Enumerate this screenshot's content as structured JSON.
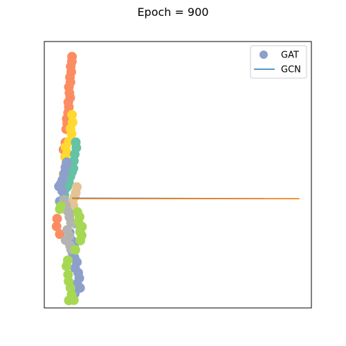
{
  "chart_data": {
    "type": "scatter",
    "title": "Epoch = 900",
    "xlabel": "",
    "ylabel": "",
    "xlim": [
      0,
      100
    ],
    "ylim": [
      0,
      100
    ],
    "axis_ticks_visible": false,
    "grid": false,
    "legend": {
      "placement": "top-right",
      "entries": [
        {
          "label": "GAT",
          "marker": "circle",
          "color": "#8da0cb"
        },
        {
          "label": "GCN",
          "marker": "line",
          "color": "#1f77b4"
        }
      ]
    },
    "palette": [
      "#fc8d62",
      "#ffd92f",
      "#66c2a5",
      "#8da0cb",
      "#e5c494",
      "#b3b3b3",
      "#a6d854"
    ],
    "series": [
      {
        "name": "GAT",
        "type": "scatter",
        "clusters": [
          {
            "color": "#fc8d62",
            "points": [
              [
                10.4,
                94.3
              ],
              [
                10.3,
                92.5
              ],
              [
                9.9,
                90.6
              ],
              [
                10.1,
                88.6
              ],
              [
                9.6,
                86.6
              ],
              [
                9.8,
                84.7
              ],
              [
                9.2,
                82.9
              ],
              [
                9.4,
                80.7
              ],
              [
                9.7,
                78.9
              ],
              [
                9.0,
                77.2
              ],
              [
                9.2,
                75.4
              ],
              [
                8.9,
                73.3
              ],
              [
                8.4,
                71.0
              ],
              [
                8.6,
                69.3
              ],
              [
                8.2,
                67.1
              ],
              [
                7.9,
                62.1
              ],
              [
                7.2,
                59.4
              ],
              [
                4.8,
                33.5
              ],
              [
                4.6,
                30.6
              ],
              [
                5.8,
                27.7
              ]
            ]
          },
          {
            "color": "#ffd92f",
            "points": [
              [
                10.4,
                72.5
              ],
              [
                10.6,
                69.7
              ],
              [
                9.8,
                67.3
              ],
              [
                10.2,
                65.4
              ],
              [
                9.2,
                62.5
              ],
              [
                8.0,
                60.4
              ],
              [
                8.6,
                58.2
              ],
              [
                7.8,
                56.6
              ],
              [
                8.2,
                54.1
              ],
              [
                7.2,
                50.1
              ],
              [
                7.9,
                47.4
              ],
              [
                10.5,
                36.9
              ],
              [
                10.0,
                36.4
              ]
            ]
          },
          {
            "color": "#66c2a5",
            "points": [
              [
                11.8,
                62.2
              ],
              [
                12.0,
                60.1
              ],
              [
                11.4,
                57.7
              ],
              [
                11.1,
                55.2
              ],
              [
                10.9,
                52.4
              ],
              [
                10.4,
                51.1
              ],
              [
                9.8,
                49.4
              ],
              [
                9.2,
                47.3
              ],
              [
                8.6,
                45.5
              ],
              [
                7.9,
                44.7
              ],
              [
                7.5,
                42.4
              ],
              [
                7.0,
                44.4
              ]
            ]
          },
          {
            "color": "#8da0cb",
            "points": [
              [
                8.4,
                54.7
              ],
              [
                7.9,
                52.7
              ],
              [
                7.4,
                50.4
              ],
              [
                6.8,
                48.0
              ],
              [
                6.2,
                46.6
              ],
              [
                5.5,
                45.6
              ],
              [
                6.7,
                43.9
              ],
              [
                5.8,
                40.0
              ],
              [
                9.2,
                36.6
              ],
              [
                9.5,
                28.3
              ],
              [
                10.4,
                25.2
              ],
              [
                11.2,
                22.9
              ],
              [
                10.6,
                20.7
              ],
              [
                11.3,
                18.9
              ],
              [
                12.2,
                17.2
              ],
              [
                11.5,
                15.0
              ],
              [
                12.7,
                13.2
              ],
              [
                13.1,
                11.2
              ],
              [
                12.3,
                9.1
              ],
              [
                13.4,
                7.5
              ],
              [
                11.4,
                5.4
              ],
              [
                10.5,
                3.7
              ]
            ]
          },
          {
            "color": "#e5c494",
            "points": [
              [
                12.2,
                45.4
              ],
              [
                11.8,
                43.3
              ],
              [
                11.4,
                41.8
              ],
              [
                10.6,
                40.2
              ],
              [
                10.9,
                38.5
              ]
            ]
          },
          {
            "color": "#b3b3b3",
            "points": [
              [
                7.4,
                40.6
              ],
              [
                8.1,
                38.4
              ],
              [
                8.7,
                36.4
              ],
              [
                9.4,
                34.1
              ],
              [
                10.0,
                32.1
              ],
              [
                11.6,
                31.6
              ],
              [
                8.6,
                29.3
              ],
              [
                9.4,
                27.0
              ],
              [
                8.0,
                25.4
              ],
              [
                9.6,
                23.5
              ],
              [
                10.0,
                22.0
              ]
            ]
          },
          {
            "color": "#a6d854",
            "points": [
              [
                6.2,
                38.2
              ],
              [
                5.8,
                37.1
              ],
              [
                12.4,
                36.0
              ],
              [
                13.2,
                34.2
              ],
              [
                12.8,
                32.3
              ],
              [
                14.1,
                30.5
              ],
              [
                13.4,
                28.6
              ],
              [
                14.0,
                27.2
              ],
              [
                13.5,
                25.3
              ],
              [
                11.6,
                21.8
              ],
              [
                8.8,
                17.9
              ],
              [
                8.3,
                15.7
              ],
              [
                8.9,
                12.5
              ],
              [
                9.1,
                10.0
              ],
              [
                9.8,
                7.5
              ],
              [
                10.2,
                5.0
              ],
              [
                11.1,
                2.9
              ],
              [
                9.2,
                2.8
              ]
            ]
          }
        ]
      },
      {
        "name": "GCN",
        "type": "line",
        "lines": [
          {
            "color": "#1f77b4",
            "points": [
              [
                10.5,
                41.2
              ],
              [
                95.5,
                41.0
              ]
            ]
          },
          {
            "color": "#ff7f0e",
            "points": [
              [
                10.8,
                41.0
              ],
              [
                95.5,
                41.0
              ]
            ]
          }
        ]
      }
    ]
  }
}
